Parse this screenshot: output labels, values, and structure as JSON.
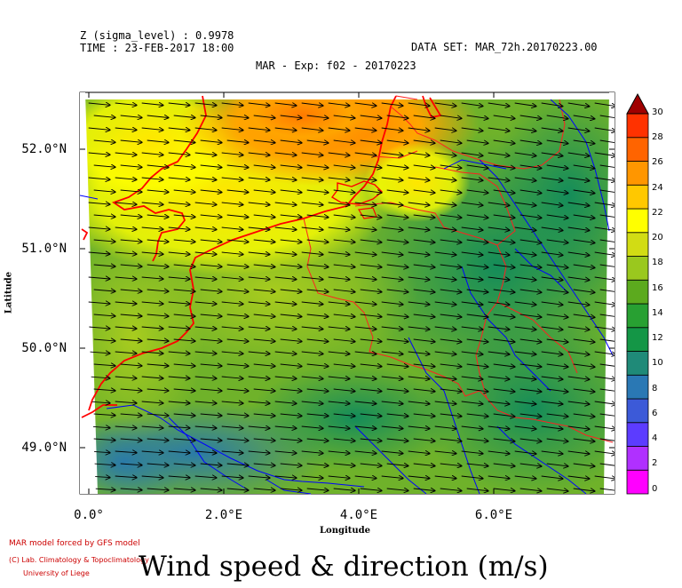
{
  "header": {
    "z_level": "Z (sigma_level) : 0.9978",
    "time": "TIME : 23-FEB-2017 18:00",
    "dataset": "DATA SET: MAR_72h.20170223.00",
    "exp": "MAR - Exp: f02 - 20170223"
  },
  "axes": {
    "ylabel": "Latitude",
    "xlabel": "Longitude",
    "yticks": [
      "52.0°N",
      "51.0°N",
      "50.0°N",
      "49.0°N"
    ],
    "xticks": [
      "0.0°",
      "2.0°E",
      "4.0°E",
      "6.0°E"
    ]
  },
  "colorbar": {
    "labels": [
      "30",
      "28",
      "26",
      "24",
      "22",
      "20",
      "18",
      "16",
      "14",
      "12",
      "10",
      "8",
      "6",
      "4",
      "2",
      "0"
    ],
    "colors": [
      "#ff00ff",
      "#b030ff",
      "#5c3cff",
      "#3c5ad8",
      "#2a78b4",
      "#1f8a78",
      "#149646",
      "#28a032",
      "#5caa1e",
      "#9ac81e",
      "#d2dc14",
      "#ffff00",
      "#ffc800",
      "#ff9600",
      "#ff6400",
      "#ff3200"
    ],
    "tip_color": "#a00000"
  },
  "credits": {
    "line1": "MAR model forced by GFS model",
    "line2": "(C) Lab. Climatology & Topoclimatology",
    "line3": "University of Liege"
  },
  "title": "Wind speed & direction (m/s)",
  "colors": {
    "border": "#ff0000",
    "rivers": "#0000ff"
  }
}
